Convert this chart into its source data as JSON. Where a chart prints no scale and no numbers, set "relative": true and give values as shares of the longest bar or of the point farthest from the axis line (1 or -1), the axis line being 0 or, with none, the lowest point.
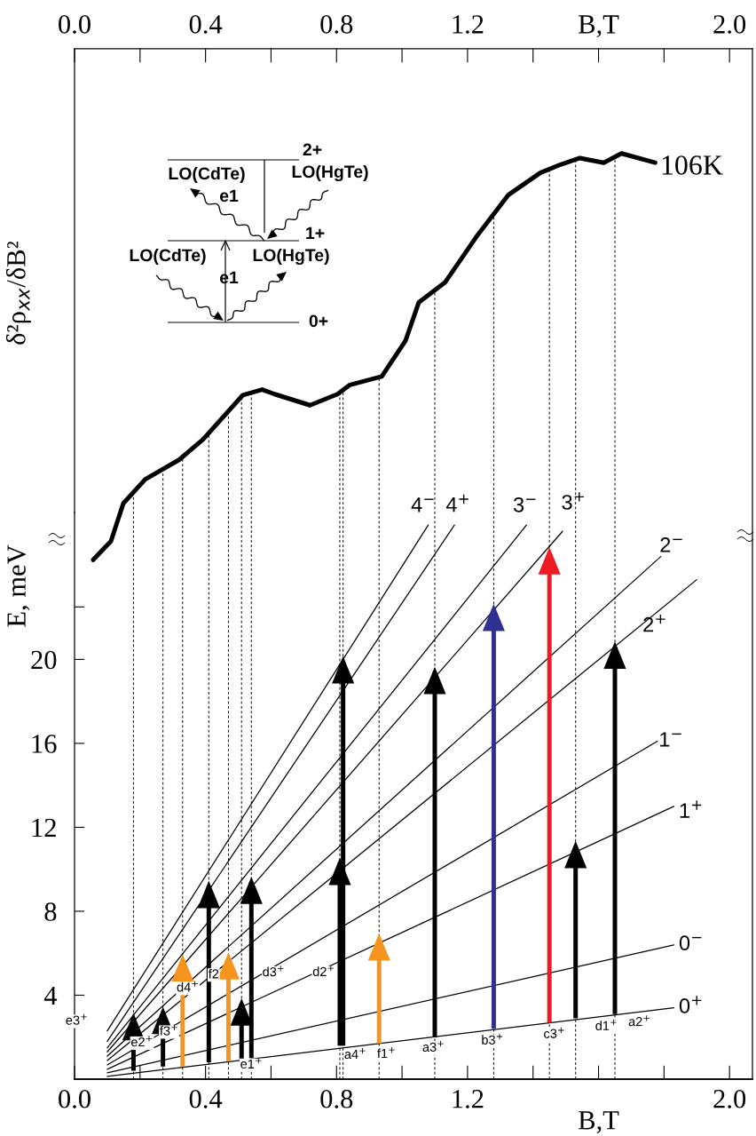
{
  "chart_data": [
    {
      "type": "line",
      "ylabel": "δ²ρ$_{xx}$/δB²",
      "relative": true,
      "tick_labels": "x",
      "color": "#000000",
      "xlim": [
        0,
        2.07
      ],
      "xticks": [
        {
          "value": 0,
          "label": "0.0"
        },
        {
          "value": 0.2,
          "label": null
        },
        {
          "value": 0.4,
          "label": "0.4"
        },
        {
          "value": 0.6,
          "label": null
        },
        {
          "value": 0.8,
          "label": "0.8"
        },
        {
          "value": 1.0,
          "label": null
        },
        {
          "value": 1.2,
          "label": "1.2"
        },
        {
          "value": 1.4,
          "label": null
        },
        {
          "value": 1.6,
          "label": "B,T"
        },
        {
          "value": 1.8,
          "label": null
        },
        {
          "value": 2.0,
          "label": "2.0"
        }
      ],
      "x": [
        0.057,
        0.097,
        0.111,
        0.149,
        0.216,
        0.319,
        0.392,
        0.514,
        0.573,
        0.611,
        0.719,
        0.803,
        0.841,
        0.938,
        1.011,
        1.051,
        1.132,
        1.227,
        1.324,
        1.422,
        1.484,
        1.543,
        1.616,
        1.67,
        1.773
      ],
      "values": [
        0.561,
        0.576,
        0.581,
        0.622,
        0.648,
        0.669,
        0.691,
        0.739,
        0.745,
        0.74,
        0.728,
        0.74,
        0.75,
        0.759,
        0.798,
        0.839,
        0.861,
        0.91,
        0.955,
        0.979,
        0.988,
        0.995,
        0.99,
        1.0,
        0.99
      ],
      "annotations": [
        "2+",
        "LO(CdTe)",
        "LO(HgTe)",
        "e1",
        "1+",
        "LO(CdTe)",
        "LO(HgTe)",
        "e1",
        "0+",
        {
          "text": "106K",
          "x": 1.773,
          "y": 0.99
        }
      ],
      "ref_lines": [
        {
          "axis": "x",
          "value": 0.18,
          "line_style": "dashed"
        },
        {
          "axis": "x",
          "value": 0.27,
          "line_style": "dashed"
        },
        {
          "axis": "x",
          "value": 0.33,
          "line_style": "dashed"
        },
        {
          "axis": "x",
          "value": 0.41,
          "line_style": "dashed"
        },
        {
          "axis": "x",
          "value": 0.47,
          "line_style": "dashed"
        },
        {
          "axis": "x",
          "value": 0.51,
          "line_style": "dashed"
        },
        {
          "axis": "x",
          "value": 0.54,
          "line_style": "dashed"
        },
        {
          "axis": "x",
          "value": 0.81,
          "line_style": "dashed"
        },
        {
          "axis": "x",
          "value": 0.82,
          "line_style": "dashed"
        },
        {
          "axis": "x",
          "value": 0.93,
          "line_style": "dashed"
        },
        {
          "axis": "x",
          "value": 1.1,
          "line_style": "dashed"
        },
        {
          "axis": "x",
          "value": 1.28,
          "line_style": "dashed"
        },
        {
          "axis": "x",
          "value": 1.45,
          "line_style": "dashed"
        },
        {
          "axis": "x",
          "value": 1.53,
          "line_style": "dashed"
        },
        {
          "axis": "x",
          "value": 1.65,
          "line_style": "dashed"
        }
      ]
    },
    {
      "type": "line",
      "xlabel": "B,T",
      "ylabel": "E, meV",
      "xlim": [
        0,
        2.07
      ],
      "xticks": [
        {
          "value": 0,
          "label": "0.0"
        },
        {
          "value": 0.2,
          "label": null
        },
        {
          "value": 0.4,
          "label": "0.4"
        },
        {
          "value": 0.6,
          "label": null
        },
        {
          "value": 0.8,
          "label": "0.8"
        },
        {
          "value": 1.0,
          "label": null
        },
        {
          "value": 1.2,
          "label": "1.2"
        },
        {
          "value": 1.4,
          "label": null
        },
        {
          "value": 1.6,
          "label": null
        },
        {
          "value": 1.8,
          "label": null
        },
        {
          "value": 2.0,
          "label": "2.0"
        }
      ],
      "ylim": [
        0,
        27
      ],
      "yticks": [
        4,
        8,
        12,
        16,
        20,
        {
          "value": 22.5,
          "label": null
        }
      ],
      "series": [
        {
          "name": "0$^{+}$",
          "color": "#000000",
          "x": [
            0.1,
            1.83
          ],
          "values": [
            0.13,
            3.4
          ]
        },
        {
          "name": "0$^{−}$",
          "color": "#000000",
          "x": [
            0.1,
            1.83
          ],
          "values": [
            0.3,
            6.4
          ]
        },
        {
          "name": "1$^{+}$",
          "color": "#000000",
          "x": [
            0.1,
            1.83
          ],
          "values": [
            0.47,
            13.0
          ]
        },
        {
          "name": "1$^{−}$",
          "color": "#000000",
          "x": [
            0.1,
            1.78
          ],
          "values": [
            0.68,
            16.1
          ]
        },
        {
          "name": "2$^{+}$",
          "color": "#000000",
          "x": [
            0.1,
            1.9
          ],
          "values": [
            0.89,
            23.8
          ]
        },
        {
          "name": "2$^{−}$",
          "color": "#000000",
          "x": [
            0.1,
            1.79
          ],
          "values": [
            1.1,
            24.9
          ]
        },
        {
          "name": "3$^{+}$",
          "color": "#000000",
          "x": [
            0.1,
            1.49
          ],
          "values": [
            1.3,
            26.1
          ]
        },
        {
          "name": "3$^{−}$",
          "color": "#000000",
          "x": [
            0.1,
            1.38
          ],
          "values": [
            1.5,
            26.4
          ]
        },
        {
          "name": "4$^{+}$",
          "color": "#000000",
          "x": [
            0.1,
            1.16
          ],
          "values": [
            1.8,
            26.4
          ]
        },
        {
          "name": "4$^{−}$",
          "color": "#000000",
          "x": [
            0.1,
            1.08
          ],
          "values": [
            2.3,
            26.4
          ]
        },
        {
          "type": "bar",
          "x": [
            0.18,
            0.27,
            0.33,
            0.41,
            0.47,
            0.51,
            0.54,
            0.81,
            0.82,
            0.93,
            1.1,
            1.28,
            1.45,
            1.53,
            1.65
          ],
          "base": [
            0.4,
            0.6,
            0.6,
            0.8,
            0.85,
            0.9,
            1.0,
            1.6,
            1.6,
            1.7,
            2.0,
            2.4,
            2.7,
            2.9,
            3.1
          ],
          "values": [
            2.5,
            2.6,
            5.1,
            8.4,
            4.95,
            2.7,
            8.4,
            8.7,
            18.3,
            5.0,
            17.4,
            20.0,
            22.4,
            8.2,
            17.5
          ],
          "colors": [
            "#000000",
            "#000000",
            "#f7941d",
            "#000000",
            "#f7941d",
            "#000000",
            "#000000",
            "#000000",
            "#000000",
            "#f7941d",
            "#000000",
            "#2e3192",
            "#ed1c24",
            "#000000",
            "#000000"
          ]
        }
      ],
      "annotations": [
        "e3$^{+}$",
        "e2$^{+}$",
        "f3$^{+}$",
        "d4$^{+}$",
        "f2",
        "e1$^{+}$",
        "d3$^{+}$",
        "d2$^{+}$",
        "a4$^{+}$",
        "f1$^{+}$",
        "a3$^{+}$",
        "b3$^{+}$",
        "c3$^{+}$",
        "d1$^{+}$",
        "a2$^{+}$"
      ]
    }
  ]
}
